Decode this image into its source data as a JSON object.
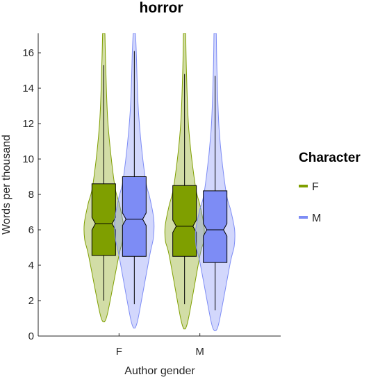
{
  "chart_data": {
    "type": "violin",
    "title": "horror",
    "xlabel": "Author gender",
    "ylabel": "Words per thousand",
    "categories": [
      "F",
      "M"
    ],
    "ylim": [
      0,
      17.1
    ],
    "yticks": [
      0,
      2,
      4,
      6,
      8,
      10,
      12,
      14,
      16
    ],
    "grid": false,
    "legend": {
      "title": "Character",
      "placement": "right",
      "entries": [
        {
          "label": "F",
          "color": "#7f9f00"
        },
        {
          "label": "M",
          "color": "#7d8cf5"
        }
      ]
    },
    "series": [
      {
        "name": "F",
        "color": "#7f9f00",
        "groups": [
          {
            "category": "F",
            "min": 0.8,
            "max": 17.1,
            "whisker_low": 2.0,
            "q1": 4.55,
            "median": 6.35,
            "q3": 8.6,
            "whisker_high": 15.3
          },
          {
            "category": "M",
            "min": 0.4,
            "max": 17.1,
            "whisker_low": 1.8,
            "q1": 4.5,
            "median": 6.2,
            "q3": 8.5,
            "whisker_high": 14.8
          }
        ]
      },
      {
        "name": "M",
        "color": "#7d8cf5",
        "groups": [
          {
            "category": "F",
            "min": 0.45,
            "max": 17.1,
            "whisker_low": 1.8,
            "q1": 4.5,
            "median": 6.6,
            "q3": 9.0,
            "whisker_high": 16.1
          },
          {
            "category": "M",
            "min": 0.3,
            "max": 17.1,
            "whisker_low": 1.45,
            "q1": 4.15,
            "median": 6.0,
            "q3": 8.2,
            "whisker_high": 14.7
          }
        ]
      }
    ]
  }
}
